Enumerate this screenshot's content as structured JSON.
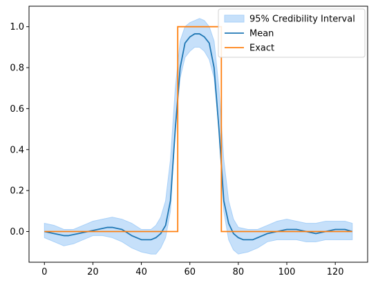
{
  "chart_data": {
    "type": "line",
    "title": "",
    "xlabel": "",
    "ylabel": "",
    "xlim": [
      -6.35,
      133.35
    ],
    "ylim": [
      -0.15,
      1.1
    ],
    "grid": false,
    "legend_position": "top-right",
    "x_ticks": [
      0,
      20,
      40,
      60,
      80,
      100,
      120
    ],
    "y_ticks": [
      0.0,
      0.2,
      0.4,
      0.6,
      0.8,
      1.0
    ],
    "x_tick_labels": [
      "0",
      "20",
      "40",
      "60",
      "80",
      "100",
      "120"
    ],
    "y_tick_labels": [
      "0.0",
      "0.2",
      "0.4",
      "0.6",
      "0.8",
      "1.0"
    ],
    "colors": {
      "interval_fill": "#a8d0f8",
      "interval_stroke": "#a8d0f8",
      "mean": "#1f77b4",
      "exact": "#ff7f0e",
      "axes": "#000000"
    },
    "series": [
      {
        "name": "95% Credibility Interval",
        "kind": "band",
        "x": [
          0,
          4,
          8,
          12,
          16,
          20,
          24,
          28,
          32,
          36,
          40,
          44,
          46,
          48,
          50,
          52,
          54,
          56,
          58,
          60,
          62,
          64,
          66,
          68,
          70,
          72,
          74,
          76,
          78,
          80,
          84,
          88,
          92,
          96,
          100,
          104,
          108,
          112,
          116,
          120,
          124,
          127
        ],
        "upper": [
          0.04,
          0.03,
          0.01,
          0.01,
          0.03,
          0.05,
          0.06,
          0.07,
          0.06,
          0.04,
          0.01,
          0.01,
          0.03,
          0.07,
          0.15,
          0.35,
          0.7,
          0.93,
          1.0,
          1.02,
          1.03,
          1.04,
          1.03,
          1.0,
          0.93,
          0.7,
          0.35,
          0.15,
          0.06,
          0.02,
          0.01,
          0.01,
          0.03,
          0.05,
          0.06,
          0.05,
          0.04,
          0.04,
          0.05,
          0.05,
          0.05,
          0.04
        ],
        "lower": [
          -0.03,
          -0.05,
          -0.07,
          -0.06,
          -0.04,
          -0.02,
          -0.02,
          -0.03,
          -0.05,
          -0.08,
          -0.1,
          -0.11,
          -0.11,
          -0.08,
          -0.03,
          0.1,
          0.5,
          0.75,
          0.85,
          0.88,
          0.9,
          0.9,
          0.88,
          0.84,
          0.75,
          0.5,
          0.1,
          -0.04,
          -0.09,
          -0.11,
          -0.1,
          -0.08,
          -0.05,
          -0.04,
          -0.04,
          -0.04,
          -0.05,
          -0.05,
          -0.04,
          -0.04,
          -0.04,
          -0.04
        ]
      },
      {
        "name": "Mean",
        "kind": "line",
        "x": [
          0,
          4,
          8,
          10,
          14,
          18,
          22,
          26,
          28,
          32,
          36,
          40,
          42,
          44,
          46,
          48,
          50,
          52,
          54,
          56,
          58,
          60,
          62,
          64,
          66,
          68,
          70,
          72,
          74,
          76,
          78,
          80,
          82,
          84,
          86,
          88,
          92,
          96,
          100,
          104,
          108,
          112,
          116,
          120,
          124,
          127
        ],
        "y": [
          0.0,
          -0.01,
          -0.02,
          -0.02,
          -0.01,
          0.0,
          0.01,
          0.02,
          0.02,
          0.01,
          -0.02,
          -0.04,
          -0.04,
          -0.04,
          -0.03,
          -0.01,
          0.03,
          0.15,
          0.5,
          0.8,
          0.92,
          0.95,
          0.965,
          0.965,
          0.95,
          0.92,
          0.8,
          0.5,
          0.15,
          0.04,
          -0.01,
          -0.03,
          -0.04,
          -0.04,
          -0.04,
          -0.03,
          -0.01,
          0.0,
          0.01,
          0.01,
          0.0,
          -0.01,
          0.0,
          0.01,
          0.01,
          0.0
        ]
      },
      {
        "name": "Exact",
        "kind": "step",
        "x": [
          0,
          55,
          55,
          73,
          73,
          127
        ],
        "y": [
          0,
          0,
          1,
          1,
          0,
          0
        ]
      }
    ]
  }
}
